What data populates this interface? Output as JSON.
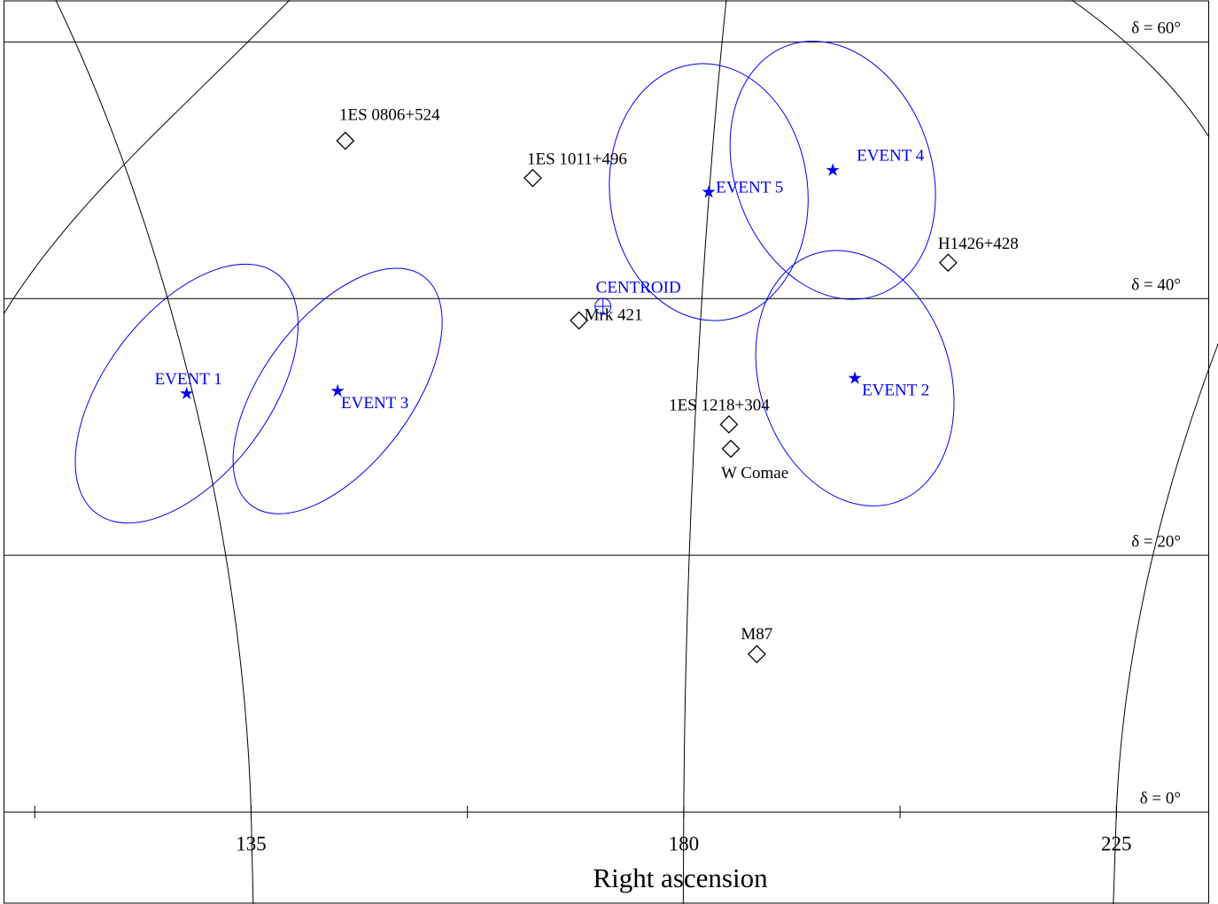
{
  "chart_data": {
    "type": "skymap",
    "xlabel": "Right ascension",
    "xlim": [
      109.3,
      234.6
    ],
    "ylim": [
      -7.1,
      63.2
    ],
    "xticks": [
      135,
      180,
      225
    ],
    "xminor_ticks": [
      112.5,
      157.5,
      202.5
    ],
    "yticks": [
      {
        "value": 60,
        "label": "δ = 60°"
      },
      {
        "value": 40,
        "label": "δ = 40°"
      },
      {
        "value": 20,
        "label": "δ = 20°"
      },
      {
        "value": 0,
        "label": "δ = 0°"
      }
    ],
    "event_color": "#0000ee",
    "source_color": "#000000",
    "sources": [
      {
        "name": "1ES 0806+524",
        "ra": 144.8,
        "dec": 52.3
      },
      {
        "name": "1ES 1011+496",
        "ra": 164.3,
        "dec": 49.4
      },
      {
        "name": "Mrk 421",
        "ra": 169.1,
        "dec": 38.3
      },
      {
        "name": "H1426+428",
        "ra": 207.5,
        "dec": 42.8
      },
      {
        "name": "1ES 1218+304",
        "ra": 184.7,
        "dec": 30.2
      },
      {
        "name": "W Comae",
        "ra": 184.9,
        "dec": 28.3
      },
      {
        "name": "M87",
        "ra": 187.6,
        "dec": 12.3
      }
    ],
    "events": [
      {
        "name": "EVENT 1",
        "ra": 128.3,
        "dec": 32.6,
        "major": 15.6,
        "minor": 8.5,
        "tilt": 37
      },
      {
        "name": "EVENT 3",
        "ra": 144.0,
        "dec": 32.8,
        "major": 14.9,
        "minor": 7.7,
        "tilt": 37
      },
      {
        "name": "EVENT 5",
        "ra": 182.6,
        "dec": 48.3,
        "major": 13.4,
        "minor": 10.3,
        "tilt": -6
      },
      {
        "name": "EVENT 4",
        "ra": 195.5,
        "dec": 50.0,
        "major": 13.8,
        "minor": 10.2,
        "tilt": -20
      },
      {
        "name": "EVENT 2",
        "ra": 197.8,
        "dec": 33.8,
        "major": 13.6,
        "minor": 9.9,
        "tilt": -18
      }
    ],
    "centroid": {
      "name": "CENTROID",
      "ra": 171.6,
      "dec": 39.4
    }
  }
}
